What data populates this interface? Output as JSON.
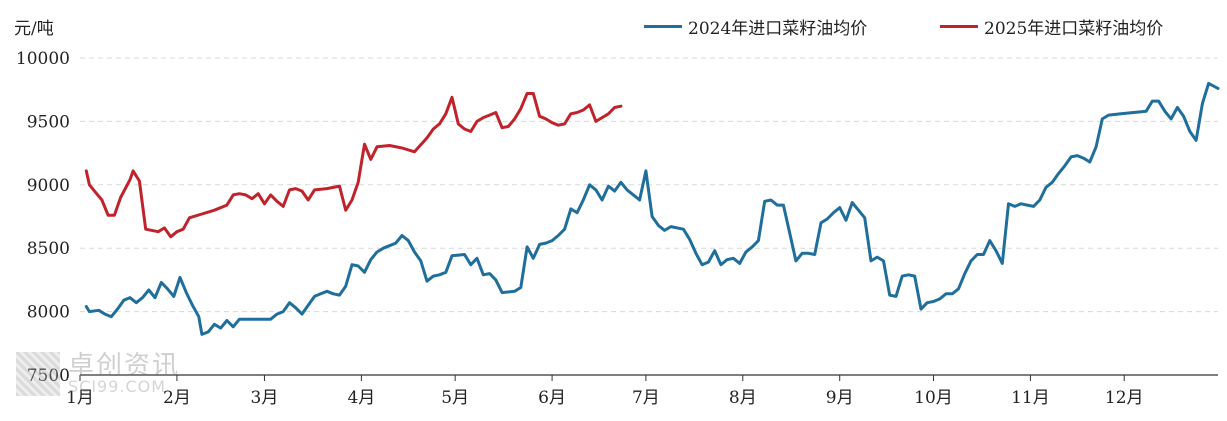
{
  "unit_label": "元/吨",
  "watermark": {
    "cn": "卓创资讯",
    "en": "SCI99.COM"
  },
  "colors": {
    "series_2024": "#1f6e9c",
    "series_2025": "#c0232b",
    "grid": "#d9d9d9",
    "axis": "#333333"
  },
  "chart_data": {
    "type": "line",
    "title": "",
    "xlabel": "",
    "ylabel": "元/吨",
    "ylim": [
      7500,
      10000
    ],
    "yticks": [
      7500,
      8000,
      8500,
      9000,
      9500,
      10000
    ],
    "grid": "horizontal-dashed",
    "legend_position": "top-right",
    "x_day_range": [
      1,
      365
    ],
    "month_ticks": [
      {
        "label": "1月",
        "day": 1
      },
      {
        "label": "2月",
        "day": 32
      },
      {
        "label": "3月",
        "day": 60
      },
      {
        "label": "4月",
        "day": 91
      },
      {
        "label": "5月",
        "day": 121
      },
      {
        "label": "6月",
        "day": 152
      },
      {
        "label": "7月",
        "day": 182
      },
      {
        "label": "8月",
        "day": 213
      },
      {
        "label": "9月",
        "day": 244
      },
      {
        "label": "10月",
        "day": 274
      },
      {
        "label": "11月",
        "day": 305
      },
      {
        "label": "12月",
        "day": 335
      }
    ],
    "series": [
      {
        "name": "2024年进口菜籽油均价",
        "color": "#1f6e9c",
        "points": [
          [
            3,
            8040
          ],
          [
            4,
            8000
          ],
          [
            7,
            8010
          ],
          [
            9,
            7980
          ],
          [
            11,
            7960
          ],
          [
            13,
            8020
          ],
          [
            15,
            8090
          ],
          [
            17,
            8110
          ],
          [
            19,
            8070
          ],
          [
            21,
            8110
          ],
          [
            23,
            8170
          ],
          [
            25,
            8110
          ],
          [
            27,
            8230
          ],
          [
            29,
            8180
          ],
          [
            31,
            8120
          ],
          [
            33,
            8270
          ],
          [
            35,
            8150
          ],
          [
            37,
            8050
          ],
          [
            39,
            7960
          ],
          [
            40,
            7820
          ],
          [
            42,
            7840
          ],
          [
            44,
            7900
          ],
          [
            46,
            7870
          ],
          [
            48,
            7930
          ],
          [
            50,
            7880
          ],
          [
            52,
            7940
          ],
          [
            56,
            7940
          ],
          [
            62,
            7940
          ],
          [
            64,
            7980
          ],
          [
            66,
            8000
          ],
          [
            68,
            8070
          ],
          [
            70,
            8030
          ],
          [
            72,
            7980
          ],
          [
            74,
            8050
          ],
          [
            76,
            8120
          ],
          [
            78,
            8140
          ],
          [
            80,
            8160
          ],
          [
            82,
            8140
          ],
          [
            84,
            8130
          ],
          [
            86,
            8200
          ],
          [
            88,
            8370
          ],
          [
            90,
            8360
          ],
          [
            92,
            8310
          ],
          [
            94,
            8410
          ],
          [
            96,
            8470
          ],
          [
            98,
            8500
          ],
          [
            100,
            8520
          ],
          [
            102,
            8540
          ],
          [
            104,
            8600
          ],
          [
            106,
            8560
          ],
          [
            108,
            8470
          ],
          [
            110,
            8400
          ],
          [
            112,
            8240
          ],
          [
            114,
            8280
          ],
          [
            116,
            8290
          ],
          [
            118,
            8310
          ],
          [
            120,
            8440
          ],
          [
            124,
            8450
          ],
          [
            126,
            8370
          ],
          [
            128,
            8420
          ],
          [
            130,
            8290
          ],
          [
            132,
            8300
          ],
          [
            134,
            8250
          ],
          [
            136,
            8150
          ],
          [
            140,
            8160
          ],
          [
            142,
            8190
          ],
          [
            144,
            8510
          ],
          [
            146,
            8420
          ],
          [
            148,
            8530
          ],
          [
            150,
            8540
          ],
          [
            152,
            8560
          ],
          [
            154,
            8600
          ],
          [
            156,
            8650
          ],
          [
            158,
            8810
          ],
          [
            160,
            8780
          ],
          [
            162,
            8880
          ],
          [
            164,
            9000
          ],
          [
            166,
            8960
          ],
          [
            168,
            8880
          ],
          [
            170,
            8990
          ],
          [
            172,
            8950
          ],
          [
            174,
            9020
          ],
          [
            176,
            8960
          ],
          [
            178,
            8920
          ],
          [
            180,
            8880
          ],
          [
            182,
            9110
          ],
          [
            184,
            8750
          ],
          [
            186,
            8680
          ],
          [
            188,
            8640
          ],
          [
            190,
            8670
          ],
          [
            194,
            8650
          ],
          [
            196,
            8570
          ],
          [
            198,
            8460
          ],
          [
            200,
            8370
          ],
          [
            202,
            8390
          ],
          [
            204,
            8480
          ],
          [
            206,
            8370
          ],
          [
            208,
            8410
          ],
          [
            210,
            8420
          ],
          [
            212,
            8380
          ],
          [
            214,
            8470
          ],
          [
            216,
            8510
          ],
          [
            218,
            8560
          ],
          [
            220,
            8870
          ],
          [
            222,
            8880
          ],
          [
            224,
            8840
          ],
          [
            226,
            8840
          ],
          [
            228,
            8620
          ],
          [
            230,
            8400
          ],
          [
            232,
            8460
          ],
          [
            234,
            8460
          ],
          [
            236,
            8450
          ],
          [
            238,
            8700
          ],
          [
            240,
            8730
          ],
          [
            242,
            8780
          ],
          [
            244,
            8820
          ],
          [
            246,
            8720
          ],
          [
            248,
            8860
          ],
          [
            250,
            8800
          ],
          [
            252,
            8740
          ],
          [
            254,
            8400
          ],
          [
            256,
            8430
          ],
          [
            258,
            8400
          ],
          [
            260,
            8130
          ],
          [
            262,
            8120
          ],
          [
            264,
            8280
          ],
          [
            266,
            8290
          ],
          [
            268,
            8280
          ],
          [
            270,
            8020
          ],
          [
            272,
            8070
          ],
          [
            274,
            8080
          ],
          [
            276,
            8100
          ],
          [
            278,
            8140
          ],
          [
            280,
            8140
          ],
          [
            282,
            8180
          ],
          [
            284,
            8300
          ],
          [
            286,
            8400
          ],
          [
            288,
            8450
          ],
          [
            290,
            8450
          ],
          [
            292,
            8560
          ],
          [
            294,
            8480
          ],
          [
            296,
            8380
          ],
          [
            298,
            8850
          ],
          [
            300,
            8830
          ],
          [
            302,
            8850
          ],
          [
            304,
            8840
          ],
          [
            306,
            8830
          ],
          [
            308,
            8880
          ],
          [
            310,
            8980
          ],
          [
            312,
            9020
          ],
          [
            314,
            9090
          ],
          [
            316,
            9150
          ],
          [
            318,
            9220
          ],
          [
            320,
            9230
          ],
          [
            322,
            9210
          ],
          [
            324,
            9180
          ],
          [
            326,
            9300
          ],
          [
            328,
            9520
          ],
          [
            330,
            9550
          ],
          [
            334,
            9560
          ],
          [
            338,
            9570
          ],
          [
            342,
            9580
          ],
          [
            344,
            9660
          ],
          [
            346,
            9660
          ],
          [
            348,
            9580
          ],
          [
            350,
            9520
          ],
          [
            352,
            9610
          ],
          [
            354,
            9540
          ],
          [
            356,
            9420
          ],
          [
            358,
            9350
          ],
          [
            360,
            9640
          ],
          [
            362,
            9800
          ],
          [
            365,
            9760
          ]
        ]
      },
      {
        "name": "2025年进口菜籽油均价",
        "color": "#c0232b",
        "points": [
          [
            3,
            9110
          ],
          [
            4,
            9000
          ],
          [
            6,
            8940
          ],
          [
            8,
            8880
          ],
          [
            10,
            8760
          ],
          [
            12,
            8760
          ],
          [
            14,
            8900
          ],
          [
            17,
            9040
          ],
          [
            18,
            9110
          ],
          [
            20,
            9030
          ],
          [
            22,
            8650
          ],
          [
            26,
            8630
          ],
          [
            28,
            8660
          ],
          [
            30,
            8590
          ],
          [
            32,
            8630
          ],
          [
            34,
            8650
          ],
          [
            36,
            8740
          ],
          [
            40,
            8770
          ],
          [
            44,
            8800
          ],
          [
            48,
            8840
          ],
          [
            50,
            8920
          ],
          [
            52,
            8930
          ],
          [
            54,
            8920
          ],
          [
            56,
            8890
          ],
          [
            58,
            8930
          ],
          [
            60,
            8850
          ],
          [
            62,
            8920
          ],
          [
            64,
            8870
          ],
          [
            66,
            8830
          ],
          [
            68,
            8960
          ],
          [
            70,
            8970
          ],
          [
            72,
            8950
          ],
          [
            74,
            8880
          ],
          [
            76,
            8960
          ],
          [
            80,
            8970
          ],
          [
            84,
            8990
          ],
          [
            86,
            8800
          ],
          [
            88,
            8880
          ],
          [
            90,
            9020
          ],
          [
            92,
            9320
          ],
          [
            94,
            9200
          ],
          [
            96,
            9300
          ],
          [
            100,
            9310
          ],
          [
            104,
            9290
          ],
          [
            108,
            9260
          ],
          [
            112,
            9370
          ],
          [
            114,
            9440
          ],
          [
            116,
            9480
          ],
          [
            118,
            9560
          ],
          [
            120,
            9690
          ],
          [
            122,
            9480
          ],
          [
            124,
            9440
          ],
          [
            126,
            9420
          ],
          [
            128,
            9500
          ],
          [
            130,
            9530
          ],
          [
            132,
            9550
          ],
          [
            134,
            9570
          ],
          [
            136,
            9450
          ],
          [
            138,
            9460
          ],
          [
            140,
            9520
          ],
          [
            142,
            9600
          ],
          [
            144,
            9720
          ],
          [
            146,
            9720
          ],
          [
            148,
            9540
          ],
          [
            150,
            9520
          ],
          [
            152,
            9490
          ],
          [
            154,
            9470
          ],
          [
            156,
            9480
          ],
          [
            158,
            9560
          ],
          [
            160,
            9570
          ],
          [
            162,
            9590
          ],
          [
            164,
            9630
          ],
          [
            166,
            9500
          ],
          [
            168,
            9530
          ],
          [
            170,
            9560
          ],
          [
            172,
            9610
          ],
          [
            174,
            9620
          ]
        ]
      }
    ]
  }
}
